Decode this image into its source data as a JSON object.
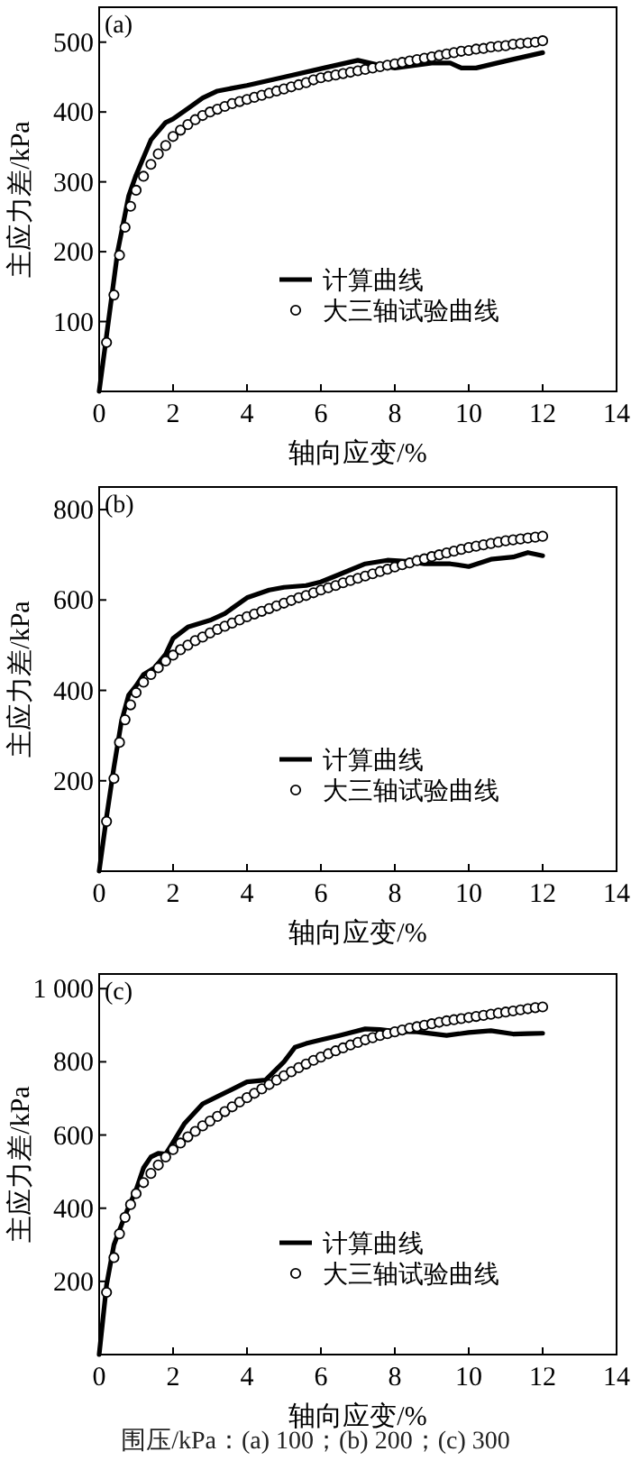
{
  "chart_data": [
    {
      "type": "line",
      "xlabel": "轴向应变/%",
      "ylabel": "主应力差/kPa",
      "xlim": [
        0,
        14
      ],
      "xticks": [
        0,
        2,
        4,
        6,
        8,
        10,
        12,
        14
      ],
      "ylim": [
        0,
        550
      ],
      "yticks": [
        100,
        200,
        300,
        400,
        500
      ],
      "legend": "bottom right",
      "annotations": [
        "(a)"
      ],
      "series": [
        {
          "name": "计算曲线",
          "type": "line",
          "color": "#000000",
          "x": [
            0,
            0.2,
            0.5,
            0.8,
            1,
            1.4,
            1.8,
            2,
            2.4,
            2.8,
            3.2,
            4,
            5,
            6,
            7,
            7.5,
            8,
            9,
            9.5,
            9.8,
            10.2,
            11,
            12
          ],
          "values": [
            0,
            80,
            200,
            280,
            310,
            360,
            385,
            390,
            405,
            420,
            430,
            438,
            450,
            462,
            474,
            468,
            463,
            470,
            470,
            463,
            463,
            473,
            485
          ]
        },
        {
          "name": "大三轴试验曲线",
          "type": "scatter",
          "marker": "circle",
          "color": "#000000",
          "x": [
            0.2,
            0.4,
            0.55,
            0.7,
            0.85,
            1.0,
            1.2,
            1.4,
            1.6,
            1.8,
            2.0,
            2.2,
            2.4,
            2.6,
            2.8,
            3.0,
            3.2,
            3.4,
            3.6,
            3.8,
            4.0,
            4.2,
            4.4,
            4.6,
            4.8,
            5.0,
            5.2,
            5.4,
            5.6,
            5.8,
            6.0,
            6.2,
            6.4,
            6.6,
            6.8,
            7.0,
            7.2,
            7.4,
            7.6,
            7.8,
            8.0,
            8.2,
            8.4,
            8.6,
            8.8,
            9.0,
            9.2,
            9.4,
            9.6,
            9.8,
            10.0,
            10.2,
            10.4,
            10.6,
            10.8,
            11.0,
            11.2,
            11.4,
            11.6,
            11.8,
            12.0
          ],
          "values": [
            70,
            138,
            195,
            235,
            265,
            288,
            308,
            325,
            340,
            352,
            365,
            374,
            382,
            389,
            395,
            400,
            404,
            408,
            412,
            415,
            418,
            421,
            424,
            427,
            430,
            433,
            436,
            439,
            442,
            446,
            449,
            451,
            453,
            455,
            457,
            459,
            461,
            463,
            465,
            467,
            469,
            471,
            473,
            475,
            477,
            479,
            481,
            483,
            485,
            487,
            488,
            490,
            491,
            493,
            494,
            495,
            497,
            498,
            499,
            500,
            502
          ]
        }
      ]
    },
    {
      "type": "line",
      "xlabel": "轴向应变/%",
      "ylabel": "主应力差/kPa",
      "xlim": [
        0,
        14
      ],
      "xticks": [
        0,
        2,
        4,
        6,
        8,
        10,
        12,
        14
      ],
      "ylim": [
        0,
        850
      ],
      "yticks": [
        200,
        400,
        600,
        800
      ],
      "legend": "bottom right",
      "annotations": [
        "(b)"
      ],
      "series": [
        {
          "name": "计算曲线",
          "type": "line",
          "color": "#000000",
          "x": [
            0,
            0.2,
            0.4,
            0.6,
            0.8,
            1,
            1.2,
            1.5,
            1.8,
            2,
            2.4,
            3,
            3.4,
            4,
            4.6,
            5,
            5.6,
            6,
            6.6,
            7.2,
            7.8,
            8.4,
            8.8,
            9.5,
            10,
            10.6,
            11.2,
            11.6,
            12
          ],
          "values": [
            0,
            120,
            230,
            330,
            390,
            410,
            435,
            450,
            480,
            515,
            540,
            555,
            570,
            605,
            622,
            628,
            632,
            640,
            660,
            680,
            688,
            685,
            680,
            680,
            674,
            690,
            695,
            705,
            698
          ]
        },
        {
          "name": "大三轴试验曲线",
          "type": "scatter",
          "marker": "circle",
          "color": "#000000",
          "x": [
            0.2,
            0.4,
            0.55,
            0.7,
            0.85,
            1.0,
            1.2,
            1.4,
            1.6,
            1.8,
            2.0,
            2.2,
            2.4,
            2.6,
            2.8,
            3.0,
            3.2,
            3.4,
            3.6,
            3.8,
            4.0,
            4.2,
            4.4,
            4.6,
            4.8,
            5.0,
            5.2,
            5.4,
            5.6,
            5.8,
            6.0,
            6.2,
            6.4,
            6.6,
            6.8,
            7.0,
            7.2,
            7.4,
            7.6,
            7.8,
            8.0,
            8.2,
            8.4,
            8.6,
            8.8,
            9.0,
            9.2,
            9.4,
            9.6,
            9.8,
            10.0,
            10.2,
            10.4,
            10.6,
            10.8,
            11.0,
            11.2,
            11.4,
            11.6,
            11.8,
            12.0
          ],
          "values": [
            110,
            205,
            285,
            335,
            368,
            395,
            418,
            435,
            450,
            465,
            478,
            490,
            500,
            510,
            518,
            527,
            535,
            542,
            549,
            556,
            563,
            569,
            575,
            581,
            587,
            593,
            599,
            605,
            610,
            616,
            622,
            627,
            632,
            638,
            643,
            648,
            653,
            658,
            663,
            668,
            673,
            678,
            682,
            687,
            691,
            696,
            700,
            704,
            708,
            712,
            716,
            719,
            722,
            725,
            728,
            731,
            733,
            735,
            737,
            739,
            741
          ]
        }
      ]
    },
    {
      "type": "line",
      "xlabel": "轴向应变/%",
      "ylabel": "主应力差/kPa",
      "xlim": [
        0,
        14
      ],
      "xticks": [
        0,
        2,
        4,
        6,
        8,
        10,
        12,
        14
      ],
      "ylim": [
        0,
        1040
      ],
      "yticks": [
        200,
        400,
        600,
        800,
        {
          "value": 1000,
          "label": "1 000"
        }
      ],
      "legend": "bottom right",
      "annotations": [
        "(c)",
        "围压/kPa：(a) 100；(b) 200；(c) 300"
      ],
      "series": [
        {
          "name": "计算曲线",
          "type": "line",
          "color": "#000000",
          "x": [
            0,
            0.2,
            0.4,
            0.7,
            1,
            1.2,
            1.4,
            1.6,
            1.8,
            2,
            2.3,
            2.8,
            3.2,
            3.6,
            4,
            4.5,
            5,
            5.3,
            5.6,
            6,
            6.5,
            7.2,
            7.6,
            8,
            8.6,
            9.4,
            10,
            10.6,
            11.2,
            11.6,
            12
          ],
          "values": [
            0,
            190,
            300,
            380,
            450,
            510,
            540,
            550,
            548,
            580,
            630,
            685,
            705,
            725,
            745,
            750,
            800,
            840,
            850,
            860,
            872,
            890,
            888,
            883,
            882,
            872,
            880,
            885,
            876,
            877,
            878
          ]
        },
        {
          "name": "大三轴试验曲线",
          "type": "scatter",
          "marker": "circle",
          "color": "#000000",
          "x": [
            0.2,
            0.4,
            0.55,
            0.7,
            0.85,
            1.0,
            1.2,
            1.4,
            1.6,
            1.8,
            2.0,
            2.2,
            2.4,
            2.6,
            2.8,
            3.0,
            3.2,
            3.4,
            3.6,
            3.8,
            4.0,
            4.2,
            4.4,
            4.6,
            4.8,
            5.0,
            5.2,
            5.4,
            5.6,
            5.8,
            6.0,
            6.2,
            6.4,
            6.6,
            6.8,
            7.0,
            7.2,
            7.4,
            7.6,
            7.8,
            8.0,
            8.2,
            8.4,
            8.6,
            8.8,
            9.0,
            9.2,
            9.4,
            9.6,
            9.8,
            10.0,
            10.2,
            10.4,
            10.6,
            10.8,
            11.0,
            11.2,
            11.4,
            11.6,
            11.8,
            12.0
          ],
          "values": [
            170,
            265,
            330,
            375,
            410,
            440,
            470,
            495,
            518,
            540,
            560,
            578,
            595,
            610,
            625,
            638,
            651,
            664,
            677,
            690,
            702,
            714,
            726,
            738,
            750,
            762,
            773,
            784,
            794,
            804,
            813,
            822,
            830,
            838,
            846,
            853,
            860,
            866,
            872,
            877,
            882,
            887,
            892,
            896,
            900,
            904,
            908,
            912,
            915,
            918,
            921,
            924,
            927,
            930,
            933,
            936,
            939,
            942,
            945,
            948,
            950
          ]
        }
      ]
    }
  ]
}
